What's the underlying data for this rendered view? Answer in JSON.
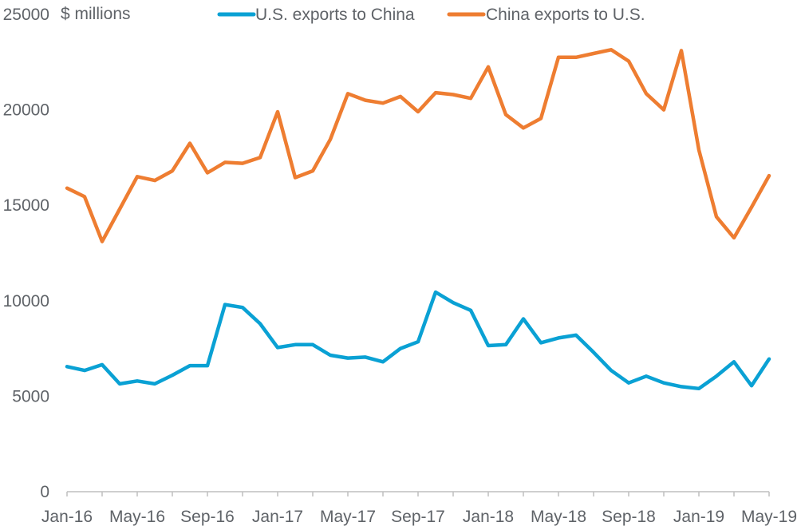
{
  "chart_data": {
    "type": "line",
    "ylabel": "$ millions",
    "ylim": [
      0,
      25000
    ],
    "yticks": [
      0,
      5000,
      10000,
      15000,
      20000,
      25000
    ],
    "xtick_labels": [
      "Jan-16",
      "May-16",
      "Sep-16",
      "Jan-17",
      "May-17",
      "Sep-17",
      "Jan-18",
      "May-18",
      "Sep-18",
      "Jan-19",
      "May-19"
    ],
    "legend_position": "top",
    "grid": false,
    "x": [
      "Jan-16",
      "Feb-16",
      "Mar-16",
      "Apr-16",
      "May-16",
      "Jun-16",
      "Jul-16",
      "Aug-16",
      "Sep-16",
      "Oct-16",
      "Nov-16",
      "Dec-16",
      "Jan-17",
      "Feb-17",
      "Mar-17",
      "Apr-17",
      "May-17",
      "Jun-17",
      "Jul-17",
      "Aug-17",
      "Sep-17",
      "Oct-17",
      "Nov-17",
      "Dec-17",
      "Jan-18",
      "Feb-18",
      "Mar-18",
      "Apr-18",
      "May-18",
      "Jun-18",
      "Jul-18",
      "Aug-18",
      "Sep-18",
      "Oct-18",
      "Nov-18",
      "Dec-18",
      "Jan-19",
      "Feb-19",
      "Mar-19",
      "Apr-19",
      "May-19"
    ],
    "series": [
      {
        "name": "U.S. exports to China",
        "color": "#0aa1d4",
        "values": [
          6550,
          6350,
          6650,
          5650,
          5800,
          5650,
          6100,
          6600,
          6600,
          9800,
          9650,
          8800,
          7550,
          7700,
          7700,
          7150,
          7000,
          7050,
          6800,
          7500,
          7850,
          10450,
          9900,
          9500,
          7650,
          7700,
          9050,
          7800,
          8050,
          8200,
          7300,
          6350,
          5700,
          6050,
          5700,
          5500,
          5400,
          6050,
          6800,
          5550,
          6950
        ]
      },
      {
        "name": "China exports to U.S.",
        "color": "#ee7d31",
        "values": [
          15900,
          15450,
          13100,
          14800,
          16500,
          16300,
          16800,
          18250,
          16700,
          17250,
          17200,
          17500,
          19900,
          16450,
          16800,
          18450,
          20850,
          20500,
          20350,
          20700,
          19900,
          20900,
          20800,
          20600,
          22250,
          19750,
          19050,
          19550,
          22750,
          22750,
          22950,
          23150,
          22550,
          20850,
          20000,
          23100,
          17900,
          14400,
          13300,
          14900,
          16550
        ]
      }
    ]
  }
}
